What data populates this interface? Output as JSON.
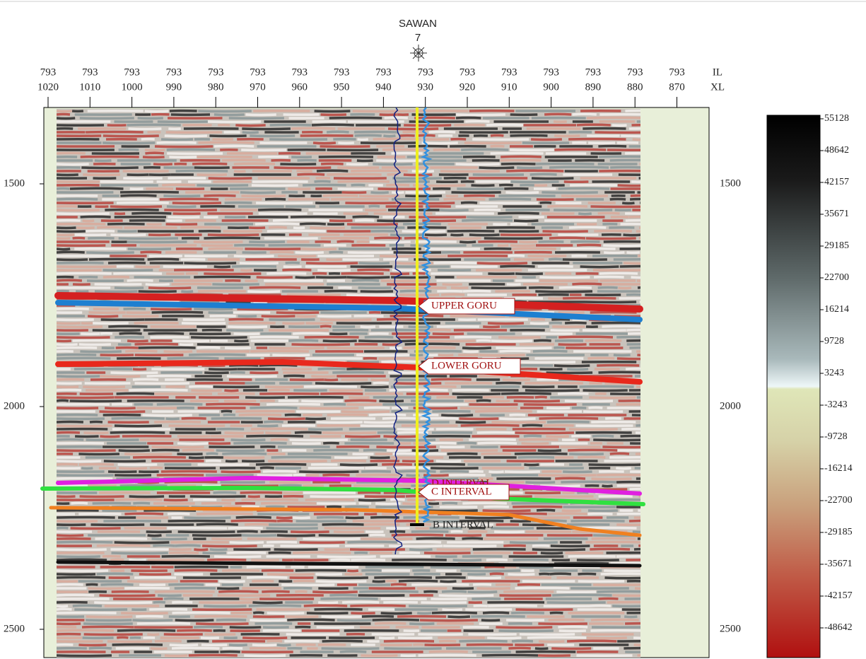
{
  "well": {
    "name": "SAWAN",
    "number": "7"
  },
  "top_axis": {
    "inline_label": "IL",
    "crossline_label": "XL",
    "inline": "793",
    "crosslines": [
      1020,
      1010,
      1000,
      990,
      980,
      970,
      960,
      950,
      940,
      930,
      920,
      910,
      900,
      890,
      880,
      870
    ]
  },
  "time_axis": {
    "ticks": [
      1500,
      2000,
      2500
    ]
  },
  "horizons": [
    {
      "label": "UPPER GORU"
    },
    {
      "label": "LOWER GORU"
    },
    {
      "label": "D INTERVAL"
    },
    {
      "label": "C INTERVAL"
    },
    {
      "label": "B INTERVAL"
    }
  ],
  "colorbar": {
    "ticks": [
      55128,
      48642,
      42157,
      35671,
      29185,
      22700,
      16214,
      9728,
      3243,
      -3243,
      -9728,
      -16214,
      -22700,
      -29185,
      -35671,
      -42157,
      -48642
    ]
  }
}
